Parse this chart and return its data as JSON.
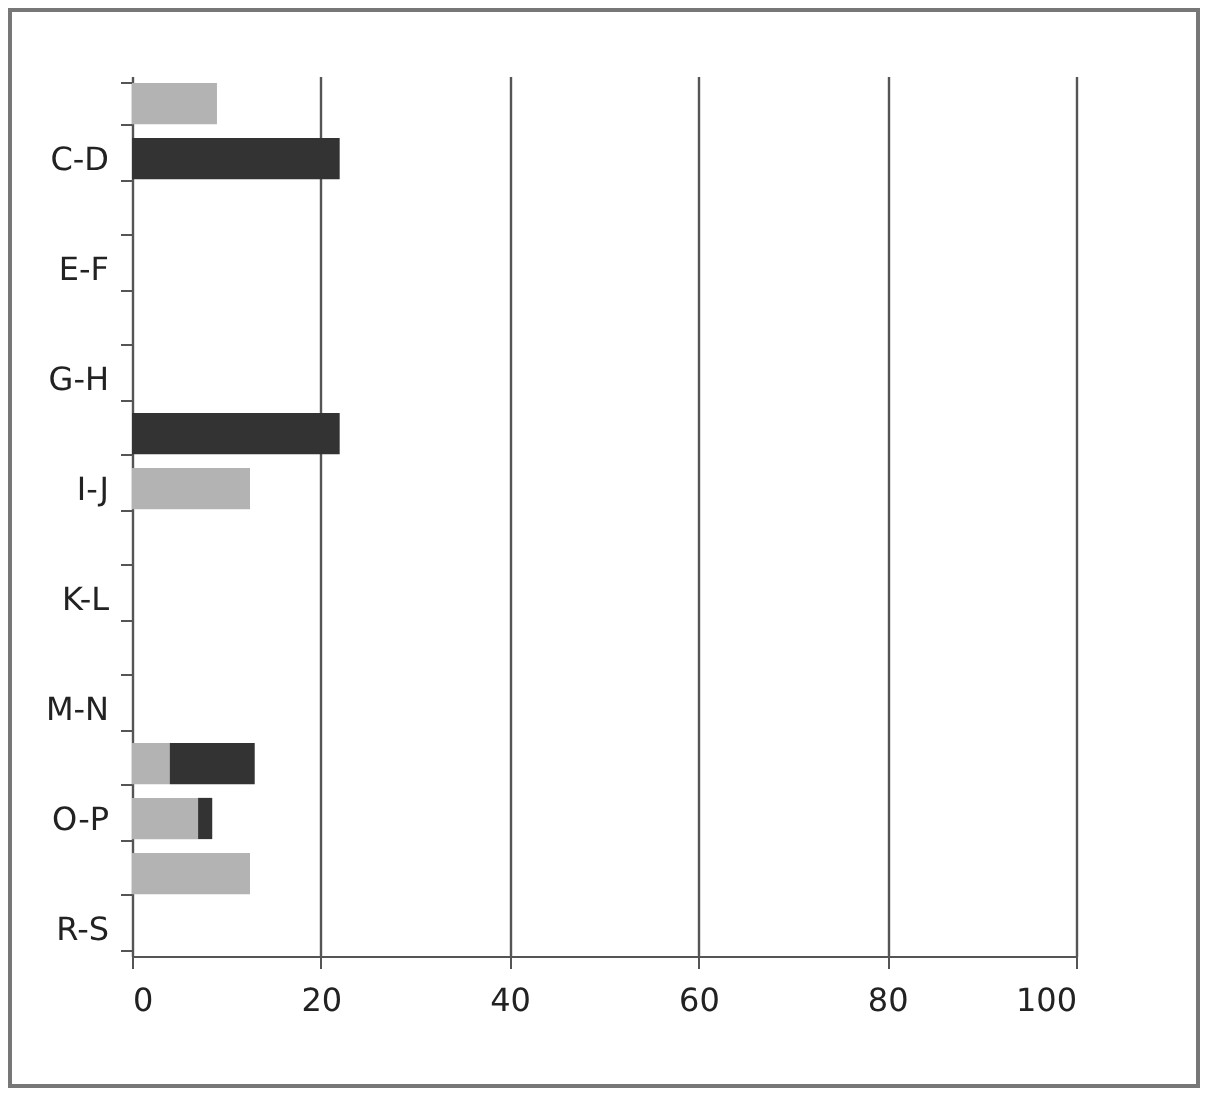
{
  "chart_data": {
    "type": "bar",
    "orientation": "horizontal",
    "stacked": true,
    "categories": [
      null,
      "C-D",
      null,
      "E-F",
      null,
      "G-H",
      null,
      "I-J",
      null,
      "K-L",
      null,
      "M-N",
      null,
      "O-P",
      null,
      "R-S"
    ],
    "series": [
      {
        "color": "#b3b3b3",
        "values": [
          9,
          0,
          0,
          0,
          0,
          0,
          0,
          12.5,
          0,
          0,
          0,
          0,
          4,
          7,
          12.5,
          0
        ]
      },
      {
        "color": "#333333",
        "values": [
          0,
          22,
          0,
          0,
          0,
          0,
          22,
          0,
          0,
          0,
          0,
          0,
          9,
          1.5,
          0,
          0
        ]
      }
    ],
    "xlim": [
      0,
      100
    ],
    "xticks": [
      0,
      20,
      40,
      60,
      80,
      100
    ],
    "grid": "x",
    "legend": false
  }
}
